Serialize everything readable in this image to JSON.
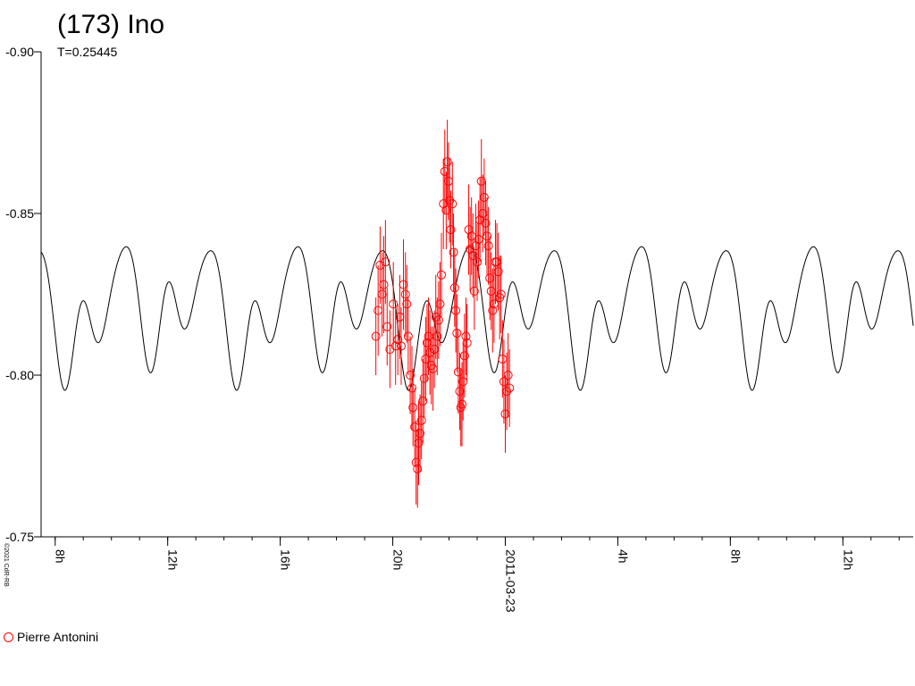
{
  "title": "(173) Ino",
  "subtitle": "T=0.25445",
  "copyright": "©2021 CdR-RB",
  "legend": [
    {
      "label": "Pierre Antonini",
      "color": "#ff0000"
    }
  ],
  "chart_data": {
    "type": "scatter",
    "title": "(173) Ino",
    "subtitle": "T=0.25445",
    "xlabel": "",
    "ylabel": "",
    "y_inverted": true,
    "ylim": [
      -0.75,
      -0.9
    ],
    "xlim_hours": [
      7.5,
      38.5
    ],
    "grid": false,
    "legend_position": "bottom-left",
    "y_ticks": [
      "-0.90",
      "-0.85",
      "-0.80",
      "-0.75"
    ],
    "y_tick_values": [
      -0.9,
      -0.85,
      -0.8,
      -0.75
    ],
    "x_ticks": [
      {
        "label": "8h",
        "hour": 8
      },
      {
        "label": "12h",
        "hour": 12
      },
      {
        "label": "16h",
        "hour": 16
      },
      {
        "label": "20h",
        "hour": 20
      },
      {
        "label": "2011-03-23",
        "hour": 24
      },
      {
        "label": "4h",
        "hour": 28
      },
      {
        "label": "8h",
        "hour": 32
      },
      {
        "label": "12h",
        "hour": 36
      }
    ],
    "period_hours": 6.107,
    "model_curve_color": "#000000",
    "series": [
      {
        "name": "Pierre Antonini",
        "color": "#ff0000",
        "marker": "circle-open",
        "points": [
          [
            19.4,
            -0.812,
            0.012
          ],
          [
            19.48,
            -0.82,
            0.014
          ],
          [
            19.55,
            -0.834,
            0.012
          ],
          [
            19.62,
            -0.825,
            0.013
          ],
          [
            19.68,
            -0.828,
            0.015
          ],
          [
            19.74,
            -0.835,
            0.013
          ],
          [
            19.8,
            -0.815,
            0.012
          ],
          [
            19.9,
            -0.808,
            0.012
          ],
          [
            20.02,
            -0.822,
            0.013
          ],
          [
            20.1,
            -0.809,
            0.012
          ],
          [
            20.18,
            -0.811,
            0.011
          ],
          [
            20.25,
            -0.818,
            0.013
          ],
          [
            20.3,
            -0.809,
            0.012
          ],
          [
            20.38,
            -0.828,
            0.014
          ],
          [
            20.45,
            -0.825,
            0.013
          ],
          [
            20.5,
            -0.822,
            0.012
          ],
          [
            20.55,
            -0.812,
            0.012
          ],
          [
            20.62,
            -0.8,
            0.012
          ],
          [
            20.68,
            -0.796,
            0.013
          ],
          [
            20.72,
            -0.79,
            0.012
          ],
          [
            20.78,
            -0.784,
            0.012
          ],
          [
            20.83,
            -0.773,
            0.013
          ],
          [
            20.88,
            -0.771,
            0.012
          ],
          [
            20.92,
            -0.779,
            0.013
          ],
          [
            20.97,
            -0.782,
            0.012
          ],
          [
            21.02,
            -0.786,
            0.012
          ],
          [
            21.07,
            -0.792,
            0.013
          ],
          [
            21.12,
            -0.799,
            0.012
          ],
          [
            21.17,
            -0.805,
            0.013
          ],
          [
            21.22,
            -0.81,
            0.012
          ],
          [
            21.27,
            -0.812,
            0.012
          ],
          [
            21.32,
            -0.807,
            0.013
          ],
          [
            21.37,
            -0.803,
            0.012
          ],
          [
            21.43,
            -0.802,
            0.013
          ],
          [
            21.48,
            -0.808,
            0.012
          ],
          [
            21.53,
            -0.818,
            0.013
          ],
          [
            21.58,
            -0.812,
            0.012
          ],
          [
            21.63,
            -0.817,
            0.012
          ],
          [
            21.68,
            -0.822,
            0.013
          ],
          [
            21.73,
            -0.831,
            0.013
          ],
          [
            21.8,
            -0.853,
            0.014
          ],
          [
            21.85,
            -0.863,
            0.013
          ],
          [
            21.9,
            -0.851,
            0.012
          ],
          [
            21.94,
            -0.866,
            0.013
          ],
          [
            21.98,
            -0.86,
            0.012
          ],
          [
            22.02,
            -0.854,
            0.013
          ],
          [
            22.06,
            -0.845,
            0.012
          ],
          [
            22.12,
            -0.853,
            0.013
          ],
          [
            22.16,
            -0.838,
            0.012
          ],
          [
            22.2,
            -0.827,
            0.012
          ],
          [
            22.24,
            -0.82,
            0.013
          ],
          [
            22.28,
            -0.813,
            0.012
          ],
          [
            22.33,
            -0.801,
            0.013
          ],
          [
            22.38,
            -0.795,
            0.012
          ],
          [
            22.42,
            -0.79,
            0.012
          ],
          [
            22.46,
            -0.791,
            0.013
          ],
          [
            22.5,
            -0.798,
            0.012
          ],
          [
            22.55,
            -0.806,
            0.013
          ],
          [
            22.6,
            -0.812,
            0.012
          ],
          [
            22.64,
            -0.81,
            0.012
          ],
          [
            22.7,
            -0.845,
            0.014
          ],
          [
            22.75,
            -0.839,
            0.013
          ],
          [
            22.8,
            -0.843,
            0.012
          ],
          [
            22.85,
            -0.837,
            0.013
          ],
          [
            22.9,
            -0.826,
            0.012
          ],
          [
            22.95,
            -0.84,
            0.013
          ],
          [
            23.0,
            -0.835,
            0.012
          ],
          [
            23.05,
            -0.842,
            0.012
          ],
          [
            23.1,
            -0.848,
            0.013
          ],
          [
            23.15,
            -0.86,
            0.013
          ],
          [
            23.2,
            -0.85,
            0.012
          ],
          [
            23.25,
            -0.855,
            0.012
          ],
          [
            23.3,
            -0.847,
            0.013
          ],
          [
            23.35,
            -0.843,
            0.012
          ],
          [
            23.4,
            -0.84,
            0.012
          ],
          [
            23.45,
            -0.83,
            0.013
          ],
          [
            23.5,
            -0.826,
            0.012
          ],
          [
            23.55,
            -0.82,
            0.013
          ],
          [
            23.6,
            -0.822,
            0.012
          ],
          [
            23.65,
            -0.835,
            0.013
          ],
          [
            23.7,
            -0.835,
            0.012
          ],
          [
            23.75,
            -0.832,
            0.012
          ],
          [
            23.8,
            -0.824,
            0.013
          ],
          [
            23.85,
            -0.825,
            0.012
          ],
          [
            23.9,
            -0.805,
            0.012
          ],
          [
            23.95,
            -0.798,
            0.013
          ],
          [
            24.0,
            -0.788,
            0.012
          ],
          [
            24.05,
            -0.795,
            0.012
          ],
          [
            24.1,
            -0.8,
            0.013
          ],
          [
            24.15,
            -0.796,
            0.012
          ]
        ]
      }
    ]
  }
}
